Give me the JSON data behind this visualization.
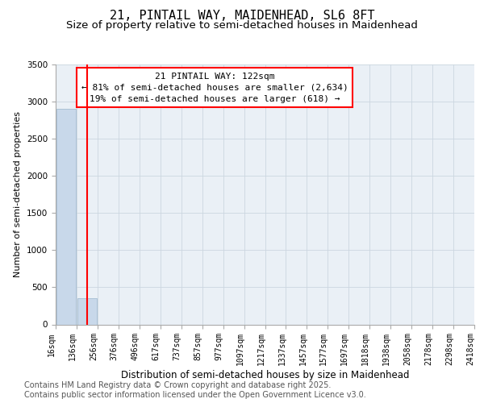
{
  "title_line1": "21, PINTAIL WAY, MAIDENHEAD, SL6 8FT",
  "title_line2": "Size of property relative to semi-detached houses in Maidenhead",
  "xlabel": "Distribution of semi-detached houses by size in Maidenhead",
  "ylabel": "Number of semi-detached properties",
  "bin_edges": [
    "16sqm",
    "136sqm",
    "256sqm",
    "376sqm",
    "496sqm",
    "617sqm",
    "737sqm",
    "857sqm",
    "977sqm",
    "1097sqm",
    "1217sqm",
    "1337sqm",
    "1457sqm",
    "1577sqm",
    "1697sqm",
    "1818sqm",
    "1938sqm",
    "2058sqm",
    "2178sqm",
    "2298sqm",
    "2418sqm"
  ],
  "bar_values": [
    2900,
    350,
    0,
    0,
    0,
    0,
    0,
    0,
    0,
    0,
    0,
    0,
    0,
    0,
    0,
    0,
    0,
    0,
    0,
    0
  ],
  "bar_color": "#c8d8ea",
  "bar_edgecolor": "#9ab4cc",
  "property_line_x": 1.0,
  "property_sqm": 122,
  "pct_smaller": 81,
  "count_smaller": "2,634",
  "pct_larger": 19,
  "count_larger": 618,
  "annotation_line1": "21 PINTAIL WAY: 122sqm",
  "annotation_line2": "← 81% of semi-detached houses are smaller (2,634)",
  "annotation_line3": "19% of semi-detached houses are larger (618) →",
  "footer_text": "Contains HM Land Registry data © Crown copyright and database right 2025.\nContains public sector information licensed under the Open Government Licence v3.0.",
  "grid_color": "#ccd6e0",
  "background_color": "#eaf0f6",
  "annotation_box_color": "white",
  "annotation_box_edgecolor": "red",
  "red_line_color": "red",
  "ylim": [
    0,
    3500
  ],
  "yticks": [
    0,
    500,
    1000,
    1500,
    2000,
    2500,
    3000,
    3500
  ],
  "title_fontsize": 11,
  "subtitle_fontsize": 9.5,
  "tick_fontsize": 7,
  "ylabel_fontsize": 8,
  "xlabel_fontsize": 8.5,
  "annotation_fontsize": 8,
  "footer_fontsize": 7
}
